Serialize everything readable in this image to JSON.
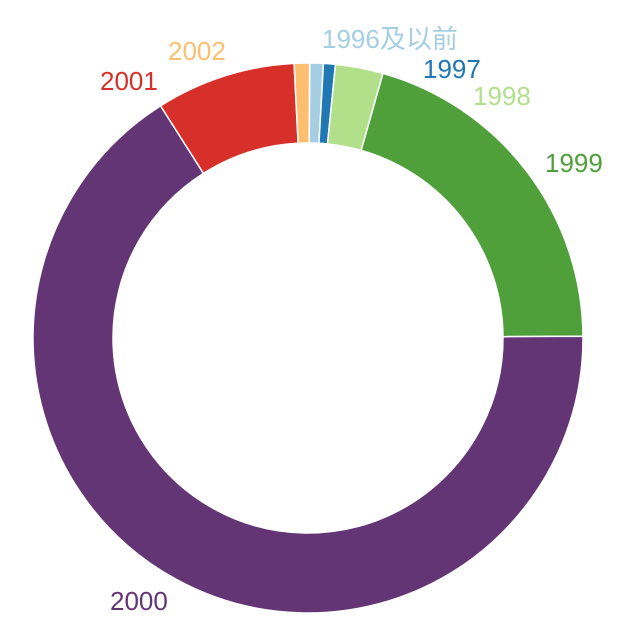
{
  "chart_data": {
    "type": "pie",
    "variant": "donut",
    "title": "",
    "legend": "none",
    "slices": [
      {
        "label": "1996及以前",
        "value": 0.8,
        "color": "#a6cee3"
      },
      {
        "label": "1997",
        "value": 0.7,
        "color": "#1f78b4"
      },
      {
        "label": "1998",
        "value": 2.8,
        "color": "#b2df8a"
      },
      {
        "label": "1999",
        "value": 20.5,
        "color": "#4f9f3b"
      },
      {
        "label": "2000",
        "value": 66.1,
        "color": "#633574"
      },
      {
        "label": "2001",
        "value": 8.2,
        "color": "#d7302a"
      },
      {
        "label": "2002",
        "value": 0.9,
        "color": "#fdbf6f"
      }
    ]
  }
}
